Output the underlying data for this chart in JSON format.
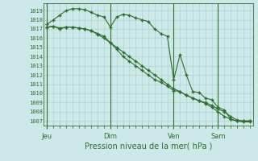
{
  "title": "Pression niveau de la mer( hPa )",
  "bg_color": "#cce8e8",
  "grid_color": "#aacccc",
  "line_color": "#2d6e2d",
  "ylim": [
    1006.5,
    1019.8
  ],
  "yticks": [
    1007,
    1008,
    1009,
    1010,
    1011,
    1012,
    1013,
    1014,
    1015,
    1016,
    1017,
    1018,
    1019
  ],
  "xtick_labels": [
    "Jeu",
    "Dim",
    "Ven",
    "Sam"
  ],
  "xtick_positions": [
    0,
    10,
    20,
    27
  ],
  "vlines": [
    0,
    10,
    20,
    27
  ],
  "total_points": 33,
  "series1": [
    1017.5,
    1018.0,
    1018.5,
    1019.0,
    1019.2,
    1019.2,
    1019.1,
    1018.8,
    1018.5,
    1018.3,
    1017.2,
    1018.3,
    1018.6,
    1018.5,
    1018.2,
    1018.0,
    1017.8,
    1017.0,
    1016.5,
    1016.2,
    1011.5,
    1014.2,
    1012.0,
    1010.2,
    1010.1,
    1009.5,
    1009.3,
    1008.5,
    1008.2,
    1007.2,
    1007.0,
    1007.0,
    1007.0
  ],
  "series2": [
    1017.2,
    1017.3,
    1017.0,
    1017.2,
    1017.2,
    1017.1,
    1017.0,
    1016.8,
    1016.5,
    1016.2,
    1015.5,
    1014.8,
    1014.0,
    1013.5,
    1013.0,
    1012.5,
    1012.0,
    1011.5,
    1011.2,
    1010.8,
    1010.3,
    1010.2,
    1009.8,
    1009.5,
    1009.2,
    1009.0,
    1008.7,
    1008.3,
    1008.0,
    1007.5,
    1007.1,
    1007.0,
    1007.0
  ],
  "series3": [
    1017.2,
    1017.3,
    1017.1,
    1017.2,
    1017.2,
    1017.1,
    1017.0,
    1016.8,
    1016.4,
    1016.0,
    1015.5,
    1015.0,
    1014.5,
    1014.0,
    1013.5,
    1013.0,
    1012.5,
    1012.0,
    1011.5,
    1011.0,
    1010.5,
    1010.2,
    1009.8,
    1009.5,
    1009.2,
    1008.9,
    1008.5,
    1008.0,
    1007.5,
    1007.2,
    1007.0,
    1006.9,
    1006.9
  ]
}
